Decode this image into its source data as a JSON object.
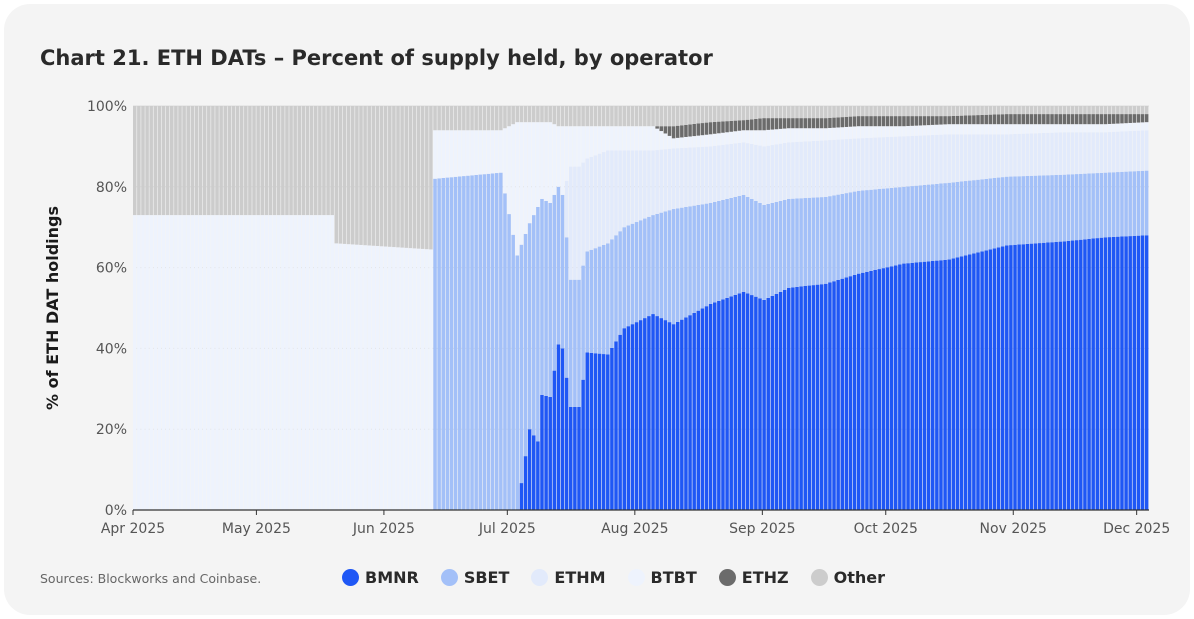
{
  "chart_data": {
    "type": "bar",
    "stacked": true,
    "title": "Chart 21.  ETH DATs – Percent of supply held, by operator",
    "ylabel": "% of ETH DAT holdings",
    "xlabel": "",
    "ylim": [
      0,
      100
    ],
    "y_ticks": [
      "0%",
      "20%",
      "40%",
      "60%",
      "80%",
      "100%"
    ],
    "x_ticks": [
      "Apr 2025",
      "May 2025",
      "Jun 2025",
      "Jul 2025",
      "Aug 2025",
      "Sep 2025",
      "Oct 2025",
      "Nov 2025",
      "Dec 2025"
    ],
    "x_tick_day_index": [
      0,
      30,
      61,
      91,
      122,
      153,
      183,
      214,
      244
    ],
    "day_count": 247,
    "legend_position": "bottom",
    "series": [
      {
        "name": "BMNR",
        "color": "#1f57f5"
      },
      {
        "name": "SBET",
        "color": "#a3c0f8"
      },
      {
        "name": "ETHM",
        "color": "#e2eafb"
      },
      {
        "name": "BTBT",
        "color": "#eef3fd"
      },
      {
        "name": "ETHZ",
        "color": "#6b6b6b"
      },
      {
        "name": "Other",
        "color": "#cccccc"
      }
    ],
    "cumulative_top_keyframes": [
      {
        "day": 0,
        "BMNR": 0,
        "SBET": 0,
        "ETHM": 0,
        "BTBT": 73,
        "ETHZ": 73
      },
      {
        "day": 48,
        "BMNR": 0,
        "SBET": 0,
        "ETHM": 0,
        "BTBT": 73,
        "ETHZ": 73
      },
      {
        "day": 49,
        "BMNR": 0,
        "SBET": 0,
        "ETHM": 0,
        "BTBT": 66,
        "ETHZ": 66
      },
      {
        "day": 72,
        "BMNR": 0,
        "SBET": 0,
        "ETHM": 0,
        "BTBT": 64.5,
        "ETHZ": 64.5
      },
      {
        "day": 73,
        "BMNR": 0,
        "SBET": 82,
        "ETHM": 82,
        "BTBT": 94,
        "ETHZ": 94
      },
      {
        "day": 89,
        "BMNR": 0,
        "SBET": 83.5,
        "ETHM": 83.5,
        "BTBT": 94,
        "ETHZ": 94
      },
      {
        "day": 93,
        "BMNR": 0,
        "SBET": 63,
        "ETHM": 63,
        "BTBT": 96,
        "ETHZ": 96
      },
      {
        "day": 96,
        "BMNR": 20,
        "SBET": 71,
        "ETHM": 71,
        "BTBT": 96,
        "ETHZ": 96
      },
      {
        "day": 98,
        "BMNR": 17,
        "SBET": 75,
        "ETHM": 75,
        "BTBT": 96,
        "ETHZ": 96
      },
      {
        "day": 99,
        "BMNR": 28.5,
        "SBET": 77,
        "ETHM": 77,
        "BTBT": 96,
        "ETHZ": 96
      },
      {
        "day": 101,
        "BMNR": 28,
        "SBET": 76,
        "ETHM": 76,
        "BTBT": 96,
        "ETHZ": 96
      },
      {
        "day": 103,
        "BMNR": 41,
        "SBET": 80,
        "ETHM": 80,
        "BTBT": 95,
        "ETHZ": 95
      },
      {
        "day": 104,
        "BMNR": 40,
        "SBET": 78,
        "ETHM": 78,
        "BTBT": 95,
        "ETHZ": 95
      },
      {
        "day": 106,
        "BMNR": 25.5,
        "SBET": 57,
        "ETHM": 85,
        "BTBT": 95,
        "ETHZ": 95
      },
      {
        "day": 108,
        "BMNR": 25.5,
        "SBET": 57,
        "ETHM": 85,
        "BTBT": 95,
        "ETHZ": 95
      },
      {
        "day": 110,
        "BMNR": 39,
        "SBET": 64,
        "ETHM": 87,
        "BTBT": 95,
        "ETHZ": 95
      },
      {
        "day": 115,
        "BMNR": 38.5,
        "SBET": 66,
        "ETHM": 89,
        "BTBT": 95,
        "ETHZ": 95
      },
      {
        "day": 119,
        "BMNR": 45,
        "SBET": 70,
        "ETHM": 89,
        "BTBT": 95,
        "ETHZ": 95
      },
      {
        "day": 126,
        "BMNR": 48.5,
        "SBET": 73,
        "ETHM": 89,
        "BTBT": 95,
        "ETHZ": 95
      },
      {
        "day": 131,
        "BMNR": 46,
        "SBET": 74.5,
        "ETHM": 89.5,
        "BTBT": 92,
        "ETHZ": 95
      },
      {
        "day": 140,
        "BMNR": 51,
        "SBET": 76,
        "ETHM": 90,
        "BTBT": 93,
        "ETHZ": 96
      },
      {
        "day": 148,
        "BMNR": 54,
        "SBET": 78,
        "ETHM": 91,
        "BTBT": 94,
        "ETHZ": 96.5
      },
      {
        "day": 153,
        "BMNR": 52,
        "SBET": 75.5,
        "ETHM": 90,
        "BTBT": 94,
        "ETHZ": 97
      },
      {
        "day": 159,
        "BMNR": 55,
        "SBET": 77,
        "ETHM": 91,
        "BTBT": 94.5,
        "ETHZ": 97
      },
      {
        "day": 168,
        "BMNR": 56,
        "SBET": 77.5,
        "ETHM": 91.5,
        "BTBT": 94.5,
        "ETHZ": 97
      },
      {
        "day": 176,
        "BMNR": 58.5,
        "SBET": 79,
        "ETHM": 92,
        "BTBT": 95,
        "ETHZ": 97.5
      },
      {
        "day": 187,
        "BMNR": 61,
        "SBET": 80,
        "ETHM": 92.5,
        "BTBT": 95,
        "ETHZ": 97.5
      },
      {
        "day": 198,
        "BMNR": 62,
        "SBET": 81,
        "ETHM": 93,
        "BTBT": 95.5,
        "ETHZ": 97.5
      },
      {
        "day": 212,
        "BMNR": 65.5,
        "SBET": 82.5,
        "ETHM": 93,
        "BTBT": 95.5,
        "ETHZ": 98
      },
      {
        "day": 226,
        "BMNR": 66.5,
        "SBET": 83,
        "ETHM": 93.5,
        "BTBT": 95.5,
        "ETHZ": 98
      },
      {
        "day": 236,
        "BMNR": 67.5,
        "SBET": 83.5,
        "ETHM": 93.5,
        "BTBT": 95.5,
        "ETHZ": 98
      },
      {
        "day": 246,
        "BMNR": 68,
        "SBET": 84,
        "ETHM": 94,
        "BTBT": 96,
        "ETHZ": 98
      }
    ]
  },
  "footer": {
    "source": "Sources: Blockworks and Coinbase."
  }
}
